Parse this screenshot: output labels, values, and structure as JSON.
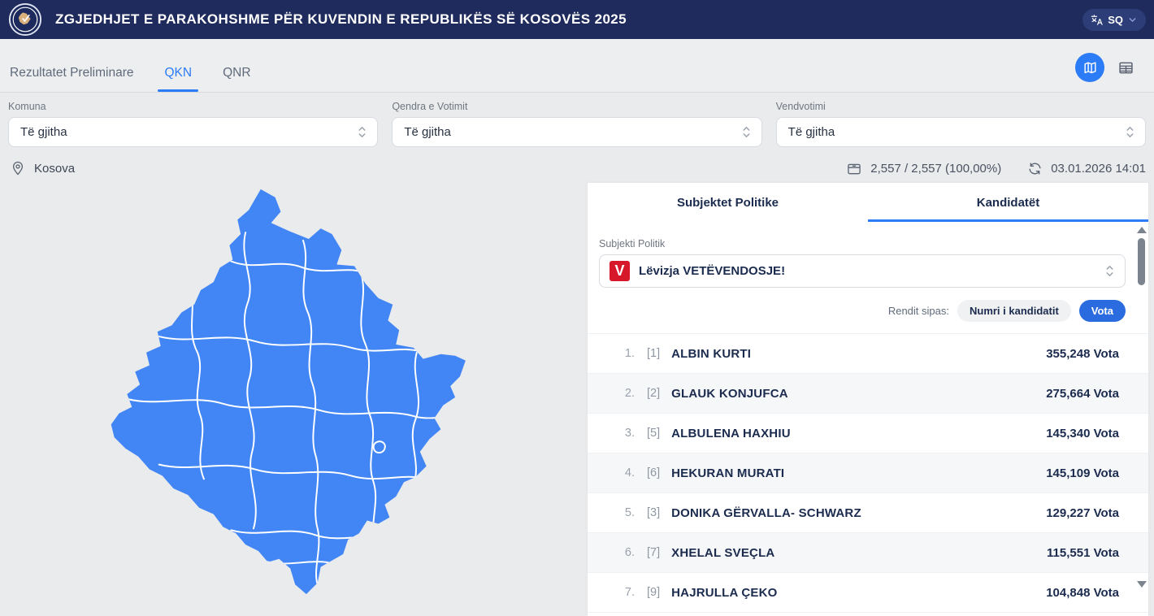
{
  "header": {
    "title": "ZGJEDHJET E PARAKOHSHME PËR KUVENDIN E REPUBLIKËS SË KOSOVËS 2025",
    "language": "SQ"
  },
  "nav": {
    "tabs": [
      {
        "label": "Rezultatet Preliminare",
        "active": false
      },
      {
        "label": "QKN",
        "active": true
      },
      {
        "label": "QNR",
        "active": false
      }
    ]
  },
  "filters": [
    {
      "label": "Komuna",
      "value": "Të gjitha"
    },
    {
      "label": "Qendra e Votimit",
      "value": "Të gjitha"
    },
    {
      "label": "Vendvotimi",
      "value": "Të gjitha"
    }
  ],
  "status": {
    "region": "Kosova",
    "counted": "2,557 / 2,557 (100,00%)",
    "updated": "03.01.2026 14:01"
  },
  "panel": {
    "tabs": [
      {
        "label": "Subjektet Politike",
        "active": false
      },
      {
        "label": "Kandidatët",
        "active": true
      }
    ],
    "subject_label": "Subjekti Politik",
    "subject_value": "Lëvizja VETËVENDOSJE!",
    "subject_logo_letter": "V",
    "sort": {
      "label": "Rendit sipas:",
      "options": [
        {
          "label": "Numri i kandidatit",
          "active": false
        },
        {
          "label": "Vota",
          "active": true
        }
      ]
    },
    "candidates": [
      {
        "rank": "1.",
        "number": "[1]",
        "name": "ALBIN KURTI",
        "votes": "355,248 Vota"
      },
      {
        "rank": "2.",
        "number": "[2]",
        "name": "GLAUK KONJUFCA",
        "votes": "275,664 Vota"
      },
      {
        "rank": "3.",
        "number": "[5]",
        "name": "ALBULENA HAXHIU",
        "votes": "145,340 Vota"
      },
      {
        "rank": "4.",
        "number": "[6]",
        "name": "HEKURAN MURATI",
        "votes": "145,109 Vota"
      },
      {
        "rank": "5.",
        "number": "[3]",
        "name": "DONIKA GËRVALLA- SCHWARZ",
        "votes": "129,227 Vota"
      },
      {
        "rank": "6.",
        "number": "[7]",
        "name": "XHELAL SVEÇLA",
        "votes": "115,551 Vota"
      },
      {
        "rank": "7.",
        "number": "[9]",
        "name": "HAJRULLA ÇEKO",
        "votes": "104,848 Vota"
      }
    ]
  },
  "icons": {
    "translate": "translate-icon",
    "chevron": "chevron-down-icon",
    "map_view": "map-icon",
    "table_view": "table-icon",
    "location": "location-pin-icon",
    "ballot": "ballot-box-icon",
    "refresh": "refresh-icon"
  },
  "colors": {
    "header_bg": "#1f2b5c",
    "accent_blue": "#2b7cf6",
    "map_fill": "#4286f5",
    "party_red": "#d7182a",
    "sort_active_bg": "#2b6be0",
    "page_bg": "#eaebed"
  }
}
